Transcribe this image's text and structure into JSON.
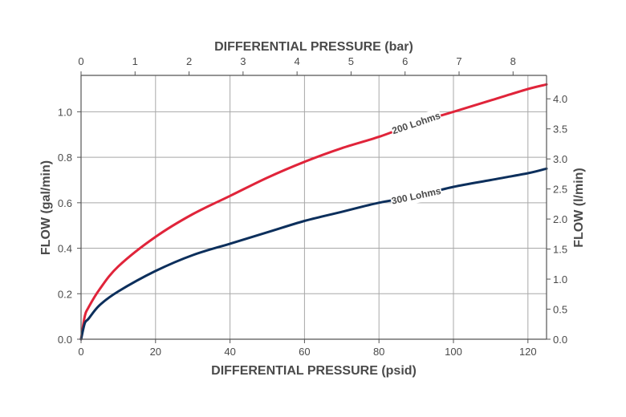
{
  "chart_data": {
    "type": "line",
    "xlabel": "DIFFERENTIAL PRESSURE (psid)",
    "x2label": "DIFFERENTIAL PRESSURE (bar)",
    "ylabel": "FLOW (gal/min)",
    "y2label": "FLOW (l/min)",
    "xlim": [
      0,
      125
    ],
    "ylim": [
      0,
      1.16
    ],
    "x2lim": [
      0,
      8.62
    ],
    "y2lim": [
      0,
      4.39
    ],
    "x_ticks": [
      "0",
      "20",
      "40",
      "60",
      "80",
      "100",
      "120"
    ],
    "y_ticks": [
      "0.0",
      "0.2",
      "0.4",
      "0.6",
      "0.8",
      "1.0"
    ],
    "x2_ticks": [
      "0",
      "1",
      "2",
      "3",
      "4",
      "5",
      "6",
      "7",
      "8"
    ],
    "y2_ticks": [
      "0.0",
      "0.5",
      "1.0",
      "1.5",
      "2.0",
      "2.5",
      "3.0",
      "3.5",
      "4.0"
    ],
    "grid": true,
    "series": [
      {
        "name": "200 Lohms",
        "color": "#e0243a",
        "x": [
          0,
          1,
          2,
          5,
          10,
          20,
          30,
          40,
          50,
          60,
          70,
          80,
          90,
          100,
          110,
          120,
          125
        ],
        "y": [
          0.0,
          0.1,
          0.14,
          0.22,
          0.32,
          0.45,
          0.55,
          0.63,
          0.71,
          0.78,
          0.84,
          0.89,
          0.95,
          1.0,
          1.05,
          1.1,
          1.12
        ]
      },
      {
        "name": "300 Lohms",
        "color": "#0c2f5c",
        "x": [
          0,
          1,
          2,
          5,
          10,
          20,
          30,
          40,
          50,
          60,
          70,
          80,
          90,
          100,
          110,
          120,
          125
        ],
        "y": [
          0.0,
          0.07,
          0.09,
          0.15,
          0.21,
          0.3,
          0.37,
          0.42,
          0.47,
          0.52,
          0.56,
          0.6,
          0.63,
          0.67,
          0.7,
          0.73,
          0.75
        ]
      }
    ],
    "annotations": [
      {
        "text": "200 Lohms",
        "series": 0,
        "x": 90
      },
      {
        "text": "300 Lohms",
        "series": 1,
        "x": 90
      }
    ]
  }
}
